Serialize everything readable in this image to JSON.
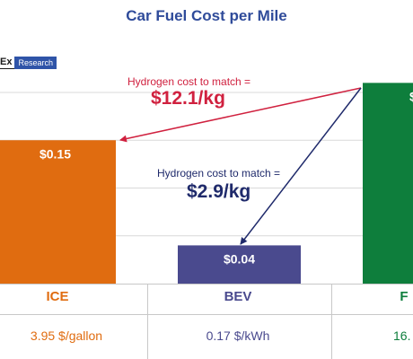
{
  "title": "Car Fuel Cost per Mile",
  "brand": {
    "name": "Ex",
    "tag": "Research"
  },
  "colors": {
    "ice": "#e06c10",
    "bev": "#4a4a8e",
    "fcev": "#0e7e3c",
    "title": "#2f4b9a",
    "annotation_red": "#d0213f",
    "annotation_navy": "#1f2a6b",
    "grid": "#d9d9d9"
  },
  "chart_data": {
    "type": "bar",
    "title": "Car Fuel Cost per Mile",
    "categories": [
      "ICE",
      "BEV",
      "F"
    ],
    "values": [
      0.15,
      0.04,
      null
    ],
    "data_labels": [
      "$0.15",
      "$0.04",
      "$"
    ],
    "cost_basis": [
      "3.95 $/gallon",
      "0.17 $/kWh",
      "16."
    ],
    "ylim": [
      0,
      0.22
    ],
    "grid": true,
    "annotations": [
      {
        "label": "Hydrogen cost to match =",
        "value": "$12.1/kg",
        "target": "ICE"
      },
      {
        "label": "Hydrogen cost to match =",
        "value": "$2.9/kg",
        "target": "BEV"
      }
    ]
  }
}
